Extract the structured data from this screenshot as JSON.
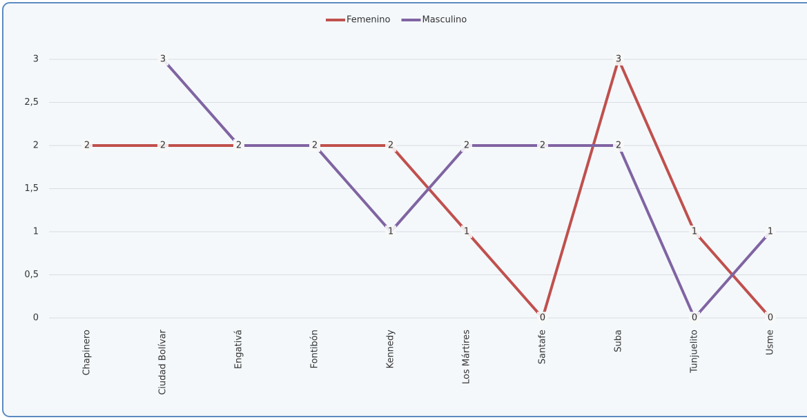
{
  "chart_data": {
    "type": "line",
    "categories": [
      "Chapinero",
      "Ciudad Bolívar",
      "Engativá",
      "Fontibón",
      "Kennedy",
      "Los Mártires",
      "Santafe",
      "Suba",
      "Tunjuelito",
      "Usme"
    ],
    "series": [
      {
        "name": "Femenino",
        "color": "#c0504d",
        "values": [
          2,
          2,
          2,
          2,
          2,
          1,
          0,
          3,
          1,
          0
        ]
      },
      {
        "name": "Masculino",
        "color": "#8064a2",
        "values": [
          null,
          3,
          2,
          2,
          1,
          2,
          2,
          2,
          0,
          1
        ]
      }
    ],
    "ylim": [
      0,
      3
    ],
    "yticks": [
      0,
      {
        "value": 0.5,
        "label": "0,5"
      },
      1,
      {
        "value": 1.5,
        "label": "1,5"
      },
      2,
      {
        "value": 2.5,
        "label": "2,5"
      },
      3
    ],
    "grid": true,
    "legend": "top"
  }
}
